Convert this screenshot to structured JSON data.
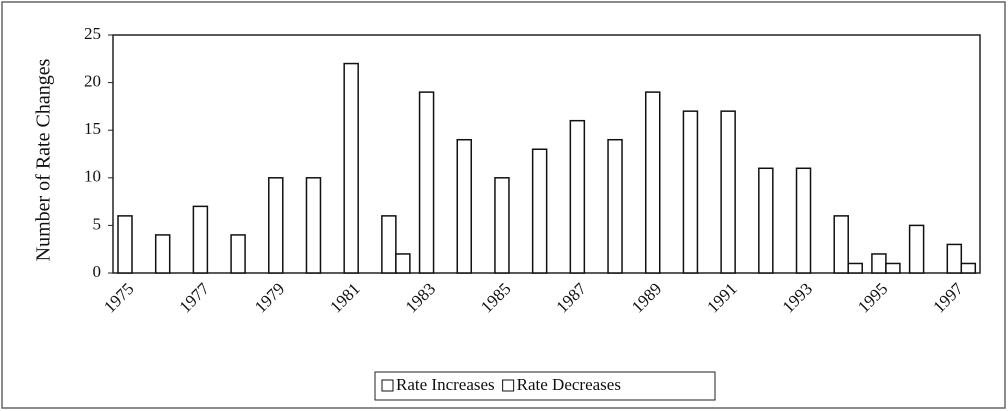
{
  "chart_data": {
    "type": "bar",
    "y_label": "Number of Rate Changes",
    "categories": [
      "1975",
      null,
      "1977",
      null,
      "1979",
      null,
      "1981",
      null,
      "1983",
      null,
      "1985",
      null,
      "1987",
      null,
      "1989",
      null,
      "1991",
      null,
      "1993",
      null,
      "1995",
      null,
      "1997"
    ],
    "series": [
      {
        "name": "Rate Increases",
        "color": "#ffffff",
        "values": [
          6,
          4,
          7,
          4,
          10,
          10,
          22,
          6,
          19,
          14,
          10,
          13,
          16,
          14,
          19,
          17,
          17,
          11,
          11,
          6,
          2,
          5,
          3
        ]
      },
      {
        "name": "Rate Decreases",
        "color": "#ffffff",
        "values": [
          0,
          0,
          0,
          0,
          0,
          0,
          0,
          2,
          0,
          0,
          0,
          0,
          0,
          0,
          0,
          0,
          0,
          0,
          0,
          1,
          1,
          0,
          1
        ]
      }
    ],
    "ylim": [
      0,
      25
    ],
    "yticks": [
      0,
      5,
      10,
      15,
      20,
      25
    ],
    "grid": false,
    "legend": "bottom"
  }
}
